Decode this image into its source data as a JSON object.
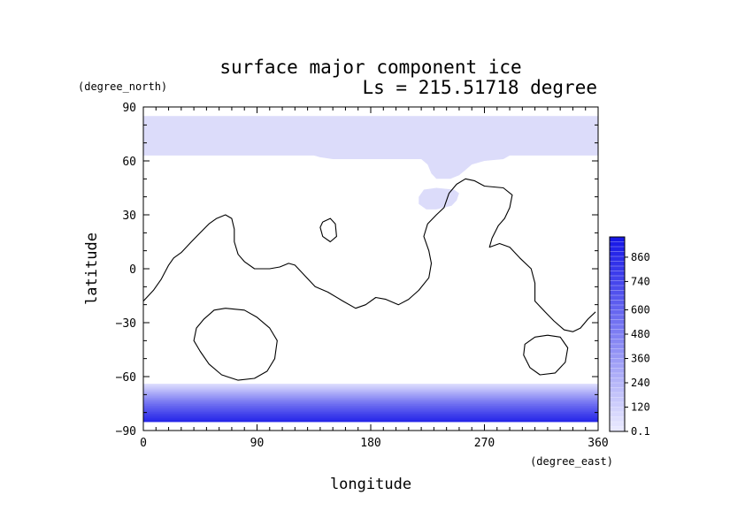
{
  "chart_data": {
    "type": "heatmap",
    "title": "surface major component ice",
    "subtitle": "Ls = 215.51718 degree",
    "xlabel": "longitude",
    "ylabel": "latitude",
    "x_unit": "(degree_east)",
    "y_unit": "(degree_north)",
    "xlim": [
      0,
      360
    ],
    "ylim": [
      -90,
      90
    ],
    "x_ticks": [
      "0",
      "90",
      "180",
      "270",
      "360"
    ],
    "y_ticks": [
      "90",
      "60",
      "30",
      "0",
      "−30",
      "−60",
      "−90"
    ],
    "x_tick_values": [
      0,
      90,
      180,
      270,
      360
    ],
    "y_tick_values": [
      90,
      60,
      30,
      0,
      -30,
      -60,
      -90
    ],
    "colorbar": {
      "labels": [
        "0.1",
        "120",
        "240",
        "360",
        "480",
        "600",
        "740",
        "860"
      ],
      "label_values": [
        0.1,
        120,
        240,
        360,
        480,
        600,
        740,
        860
      ],
      "range": [
        0,
        960
      ],
      "low_color": "#ebebff",
      "high_color": "#1414e6"
    },
    "colors": {
      "north_cap": "#dcdcfa",
      "outline": "#000000",
      "frame": "#000000"
    },
    "north_cap": {
      "boundary": [
        [
          0,
          85
        ],
        [
          360,
          85
        ],
        [
          360,
          63
        ],
        [
          290,
          63
        ],
        [
          285,
          61
        ],
        [
          270,
          60
        ],
        [
          260,
          58
        ],
        [
          255,
          55
        ],
        [
          250,
          52
        ],
        [
          243,
          50
        ],
        [
          232,
          50
        ],
        [
          228,
          53
        ],
        [
          225,
          58
        ],
        [
          220,
          61
        ],
        [
          150,
          61
        ],
        [
          140,
          62
        ],
        [
          135,
          63
        ],
        [
          0,
          63
        ]
      ],
      "patch": [
        [
          218,
          40
        ],
        [
          222,
          44
        ],
        [
          232,
          45
        ],
        [
          246,
          44
        ],
        [
          250,
          42
        ],
        [
          248,
          38
        ],
        [
          244,
          35
        ],
        [
          232,
          33
        ],
        [
          224,
          33
        ],
        [
          218,
          36
        ]
      ],
      "value": 60
    },
    "south_cap": {
      "lat_edge": -64,
      "lat_bottom": -85,
      "profile": [
        [
          -64,
          60
        ],
        [
          -66,
          140
        ],
        [
          -68,
          230
        ],
        [
          -70,
          320
        ],
        [
          -72,
          410
        ],
        [
          -74,
          500
        ],
        [
          -76,
          580
        ],
        [
          -78,
          650
        ],
        [
          -80,
          720
        ],
        [
          -82,
          790
        ],
        [
          -84,
          850
        ],
        [
          -85,
          880
        ]
      ]
    },
    "coastlines": [
      [
        [
          0,
          -18
        ],
        [
          8,
          -12
        ],
        [
          14,
          -6
        ],
        [
          20,
          2
        ],
        [
          24,
          6
        ],
        [
          30,
          9
        ],
        [
          38,
          15
        ],
        [
          45,
          20
        ],
        [
          52,
          25
        ],
        [
          58,
          28
        ],
        [
          65,
          30
        ],
        [
          70,
          28
        ],
        [
          72,
          22
        ],
        [
          72,
          15
        ],
        [
          75,
          8
        ],
        [
          80,
          4
        ],
        [
          88,
          0
        ],
        [
          100,
          0
        ],
        [
          108,
          1
        ],
        [
          115,
          3
        ],
        [
          120,
          2
        ],
        [
          128,
          -4
        ],
        [
          136,
          -10
        ],
        [
          146,
          -13
        ],
        [
          158,
          -18
        ],
        [
          168,
          -22
        ],
        [
          176,
          -20
        ],
        [
          184,
          -16
        ],
        [
          192,
          -17
        ],
        [
          202,
          -20
        ],
        [
          210,
          -17
        ],
        [
          218,
          -12
        ],
        [
          226,
          -5
        ],
        [
          228,
          3
        ],
        [
          226,
          10
        ],
        [
          222,
          18
        ],
        [
          225,
          25
        ],
        [
          232,
          30
        ],
        [
          238,
          34
        ],
        [
          242,
          42
        ],
        [
          248,
          47
        ],
        [
          255,
          50
        ],
        [
          262,
          49
        ],
        [
          270,
          46
        ],
        [
          285,
          45
        ],
        [
          292,
          41
        ],
        [
          290,
          34
        ],
        [
          286,
          28
        ],
        [
          281,
          24
        ],
        [
          276,
          17
        ],
        [
          274,
          12
        ],
        [
          282,
          14
        ],
        [
          290,
          12
        ],
        [
          298,
          6
        ],
        [
          307,
          0
        ],
        [
          310,
          -8
        ],
        [
          310,
          -18
        ],
        [
          318,
          -24
        ],
        [
          325,
          -29
        ],
        [
          333,
          -34
        ],
        [
          340,
          -35
        ],
        [
          346,
          -33
        ],
        [
          352,
          -28
        ],
        [
          358,
          -24
        ]
      ],
      [
        [
          142,
          26
        ],
        [
          148,
          28
        ],
        [
          152,
          25
        ],
        [
          153,
          18
        ],
        [
          148,
          15
        ],
        [
          142,
          18
        ],
        [
          140,
          23
        ],
        [
          142,
          26
        ]
      ],
      [
        [
          65,
          -22
        ],
        [
          80,
          -23
        ],
        [
          90,
          -27
        ],
        [
          100,
          -33
        ],
        [
          106,
          -40
        ],
        [
          104,
          -50
        ],
        [
          98,
          -57
        ],
        [
          88,
          -61
        ],
        [
          75,
          -62
        ],
        [
          62,
          -59
        ],
        [
          52,
          -53
        ],
        [
          45,
          -46
        ],
        [
          40,
          -40
        ],
        [
          42,
          -33
        ],
        [
          48,
          -28
        ],
        [
          56,
          -23
        ],
        [
          65,
          -22
        ]
      ],
      [
        [
          320,
          -37
        ],
        [
          330,
          -38
        ],
        [
          336,
          -44
        ],
        [
          334,
          -52
        ],
        [
          326,
          -58
        ],
        [
          314,
          -59
        ],
        [
          306,
          -55
        ],
        [
          301,
          -48
        ],
        [
          302,
          -42
        ],
        [
          310,
          -38
        ],
        [
          320,
          -37
        ]
      ]
    ]
  }
}
